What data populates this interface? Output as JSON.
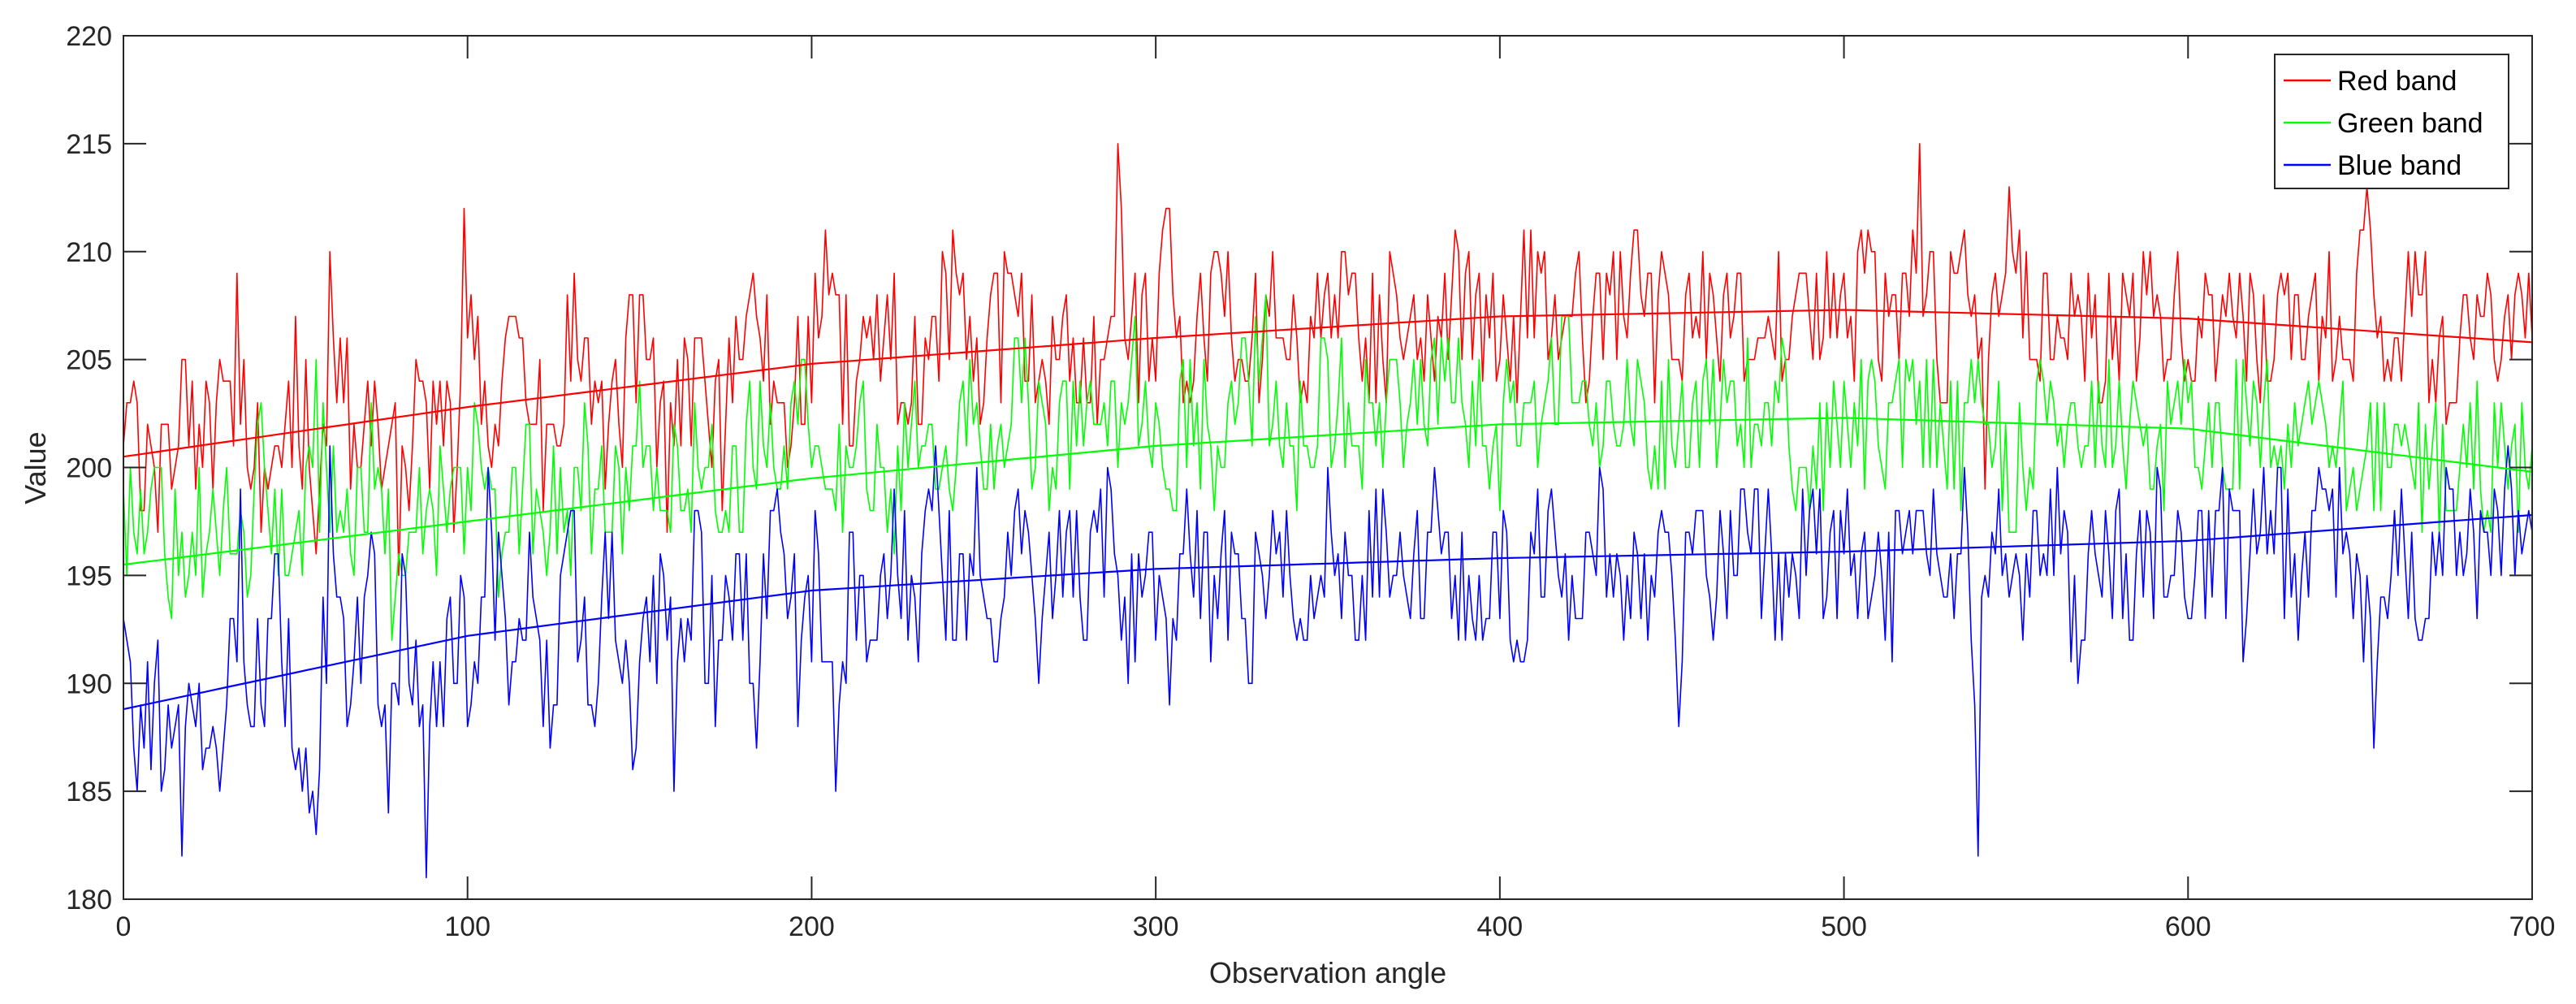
{
  "chart_data": {
    "type": "line",
    "title": "",
    "xlabel": "Observation angle",
    "ylabel": "Value",
    "xlim": [
      0,
      700
    ],
    "ylim": [
      180,
      220
    ],
    "xticks": [
      0,
      100,
      200,
      300,
      400,
      500,
      600,
      700
    ],
    "yticks": [
      180,
      185,
      190,
      195,
      200,
      205,
      210,
      215,
      220
    ],
    "grid": false,
    "legend_position": "top-right",
    "series": [
      {
        "name": "Red band",
        "color": "#ff0000",
        "trend": [
          [
            0,
            200.5
          ],
          [
            100,
            202.8
          ],
          [
            200,
            204.8
          ],
          [
            300,
            206.0
          ],
          [
            400,
            207.0
          ],
          [
            500,
            207.3
          ],
          [
            600,
            206.9
          ],
          [
            700,
            205.8
          ]
        ],
        "samples": [
          [
            0,
            201
          ],
          [
            4,
            203
          ],
          [
            10,
            197
          ],
          [
            18,
            205
          ],
          [
            26,
            199
          ],
          [
            33,
            209
          ],
          [
            40,
            197
          ],
          [
            50,
            207
          ],
          [
            56,
            196
          ],
          [
            60,
            210
          ],
          [
            68,
            200
          ],
          [
            73,
            204
          ],
          [
            80,
            195
          ],
          [
            88,
            203
          ],
          [
            96,
            197
          ],
          [
            99,
            212
          ],
          [
            106,
            201
          ],
          [
            114,
            207
          ],
          [
            122,
            198
          ],
          [
            131,
            209
          ],
          [
            140,
            199
          ],
          [
            150,
            208
          ],
          [
            158,
            197
          ],
          [
            166,
            206
          ],
          [
            174,
            198
          ],
          [
            183,
            209
          ],
          [
            193,
            200
          ],
          [
            204,
            211
          ],
          [
            212,
            201
          ],
          [
            222,
            208
          ],
          [
            232,
            202
          ],
          [
            241,
            211
          ],
          [
            250,
            203
          ],
          [
            258,
            209
          ],
          [
            266,
            204
          ],
          [
            276,
            206
          ],
          [
            281,
            203
          ],
          [
            289,
            215
          ],
          [
            295,
            203
          ],
          [
            303,
            212
          ],
          [
            311,
            204
          ],
          [
            318,
            210
          ],
          [
            326,
            204
          ],
          [
            334,
            210
          ],
          [
            342,
            203
          ],
          [
            350,
            209
          ],
          [
            360,
            204
          ],
          [
            370,
            208
          ],
          [
            380,
            206
          ],
          [
            390,
            209
          ],
          [
            400,
            205
          ],
          [
            412,
            209
          ],
          [
            424,
            206
          ],
          [
            438,
            209
          ],
          [
            450,
            205
          ],
          [
            462,
            208
          ],
          [
            474,
            205
          ],
          [
            486,
            208
          ],
          [
            498,
            206
          ],
          [
            508,
            210
          ],
          [
            516,
            205
          ],
          [
            522,
            215
          ],
          [
            528,
            203
          ],
          [
            535,
            211
          ],
          [
            541,
            199
          ],
          [
            548,
            213
          ],
          [
            556,
            205
          ],
          [
            566,
            209
          ],
          [
            576,
            204
          ],
          [
            588,
            208
          ],
          [
            600,
            205
          ],
          [
            612,
            209
          ],
          [
            624,
            204
          ],
          [
            636,
            208
          ],
          [
            646,
            205
          ],
          [
            652,
            213
          ],
          [
            658,
            205
          ],
          [
            668,
            208
          ],
          [
            678,
            203
          ],
          [
            688,
            208
          ],
          [
            694,
            205
          ],
          [
            700,
            206
          ]
        ]
      },
      {
        "name": "Green band",
        "color": "#00ff00",
        "trend": [
          [
            0,
            195.5
          ],
          [
            100,
            197.5
          ],
          [
            200,
            199.5
          ],
          [
            300,
            201.0
          ],
          [
            400,
            202.0
          ],
          [
            500,
            202.3
          ],
          [
            600,
            201.8
          ],
          [
            700,
            199.8
          ]
        ],
        "samples": [
          [
            0,
            199
          ],
          [
            4,
            196
          ],
          [
            10,
            200
          ],
          [
            18,
            194
          ],
          [
            26,
            199
          ],
          [
            33,
            196
          ],
          [
            40,
            203
          ],
          [
            48,
            195
          ],
          [
            56,
            205
          ],
          [
            64,
            197
          ],
          [
            72,
            203
          ],
          [
            78,
            192
          ],
          [
            86,
            200
          ],
          [
            94,
            197
          ],
          [
            102,
            203
          ],
          [
            110,
            196
          ],
          [
            118,
            202
          ],
          [
            126,
            196
          ],
          [
            134,
            203
          ],
          [
            142,
            197
          ],
          [
            150,
            204
          ],
          [
            158,
            198
          ],
          [
            166,
            203
          ],
          [
            174,
            197
          ],
          [
            182,
            204
          ],
          [
            190,
            199
          ],
          [
            198,
            205
          ],
          [
            206,
            199
          ],
          [
            214,
            203
          ],
          [
            222,
            197
          ],
          [
            230,
            204
          ],
          [
            238,
            200
          ],
          [
            246,
            205
          ],
          [
            254,
            201
          ],
          [
            262,
            206
          ],
          [
            270,
            200
          ],
          [
            278,
            204
          ],
          [
            286,
            201
          ],
          [
            294,
            207
          ],
          [
            302,
            200
          ],
          [
            310,
            205
          ],
          [
            318,
            201
          ],
          [
            326,
            206
          ],
          [
            332,
            208
          ],
          [
            340,
            201
          ],
          [
            348,
            206
          ],
          [
            358,
            201
          ],
          [
            368,
            205
          ],
          [
            378,
            202
          ],
          [
            388,
            206
          ],
          [
            398,
            201
          ],
          [
            410,
            204
          ],
          [
            420,
            207
          ],
          [
            430,
            201
          ],
          [
            440,
            205
          ],
          [
            450,
            201
          ],
          [
            460,
            205
          ],
          [
            470,
            202
          ],
          [
            480,
            204
          ],
          [
            490,
            198
          ],
          [
            500,
            204
          ],
          [
            510,
            201
          ],
          [
            520,
            205
          ],
          [
            530,
            199
          ],
          [
            540,
            203
          ],
          [
            550,
            197
          ],
          [
            560,
            204
          ],
          [
            570,
            201
          ],
          [
            580,
            204
          ],
          [
            590,
            199
          ],
          [
            600,
            203
          ],
          [
            610,
            200
          ],
          [
            620,
            203
          ],
          [
            630,
            200
          ],
          [
            640,
            202
          ],
          [
            650,
            199
          ],
          [
            660,
            202
          ],
          [
            670,
            199
          ],
          [
            680,
            202
          ],
          [
            690,
            200
          ],
          [
            700,
            201
          ]
        ]
      },
      {
        "name": "Blue band",
        "color": "#0000ff",
        "trend": [
          [
            0,
            188.8
          ],
          [
            100,
            192.2
          ],
          [
            200,
            194.3
          ],
          [
            300,
            195.3
          ],
          [
            400,
            195.8
          ],
          [
            500,
            196.1
          ],
          [
            600,
            196.6
          ],
          [
            700,
            197.8
          ]
        ],
        "samples": [
          [
            0,
            193
          ],
          [
            3,
            187
          ],
          [
            7,
            191
          ],
          [
            12,
            186
          ],
          [
            17,
            182
          ],
          [
            22,
            190
          ],
          [
            28,
            185
          ],
          [
            34,
            199
          ],
          [
            38,
            188
          ],
          [
            44,
            196
          ],
          [
            50,
            186
          ],
          [
            56,
            183
          ],
          [
            60,
            201
          ],
          [
            66,
            189
          ],
          [
            72,
            197
          ],
          [
            77,
            184
          ],
          [
            82,
            195
          ],
          [
            88,
            181
          ],
          [
            94,
            193
          ],
          [
            100,
            188
          ],
          [
            106,
            200
          ],
          [
            112,
            189
          ],
          [
            118,
            197
          ],
          [
            124,
            187
          ],
          [
            130,
            198
          ],
          [
            136,
            189
          ],
          [
            142,
            197
          ],
          [
            148,
            186
          ],
          [
            154,
            195
          ],
          [
            160,
            185
          ],
          [
            166,
            198
          ],
          [
            172,
            188
          ],
          [
            178,
            196
          ],
          [
            184,
            187
          ],
          [
            190,
            199
          ],
          [
            196,
            188
          ],
          [
            202,
            196
          ],
          [
            207,
            185
          ],
          [
            212,
            197
          ],
          [
            218,
            192
          ],
          [
            224,
            199
          ],
          [
            230,
            194
          ],
          [
            236,
            201
          ],
          [
            242,
            192
          ],
          [
            248,
            200
          ],
          [
            254,
            191
          ],
          [
            260,
            199
          ],
          [
            266,
            190
          ],
          [
            272,
            198
          ],
          [
            280,
            192
          ],
          [
            286,
            200
          ],
          [
            292,
            190
          ],
          [
            298,
            197
          ],
          [
            304,
            189
          ],
          [
            310,
            196
          ],
          [
            316,
            191
          ],
          [
            322,
            197
          ],
          [
            328,
            190
          ],
          [
            334,
            198
          ],
          [
            342,
            193
          ],
          [
            350,
            200
          ],
          [
            358,
            192
          ],
          [
            366,
            199
          ],
          [
            374,
            193
          ],
          [
            382,
            198
          ],
          [
            390,
            192
          ],
          [
            398,
            197
          ],
          [
            406,
            191
          ],
          [
            414,
            198
          ],
          [
            422,
            193
          ],
          [
            430,
            199
          ],
          [
            438,
            193
          ],
          [
            446,
            197
          ],
          [
            452,
            188
          ],
          [
            458,
            198
          ],
          [
            466,
            193
          ],
          [
            474,
            199
          ],
          [
            482,
            192
          ],
          [
            490,
            198
          ],
          [
            498,
            193
          ],
          [
            506,
            197
          ],
          [
            514,
            191
          ],
          [
            522,
            198
          ],
          [
            530,
            194
          ],
          [
            536,
            197
          ],
          [
            539,
            182
          ],
          [
            544,
            196
          ],
          [
            552,
            192
          ],
          [
            560,
            199
          ],
          [
            568,
            190
          ],
          [
            576,
            198
          ],
          [
            584,
            192
          ],
          [
            592,
            199
          ],
          [
            600,
            193
          ],
          [
            608,
            198
          ],
          [
            616,
            191
          ],
          [
            624,
            198
          ],
          [
            632,
            192
          ],
          [
            640,
            199
          ],
          [
            648,
            193
          ],
          [
            654,
            187
          ],
          [
            660,
            198
          ],
          [
            668,
            192
          ],
          [
            676,
            199
          ],
          [
            684,
            193
          ],
          [
            692,
            199
          ],
          [
            700,
            197
          ]
        ]
      }
    ]
  }
}
